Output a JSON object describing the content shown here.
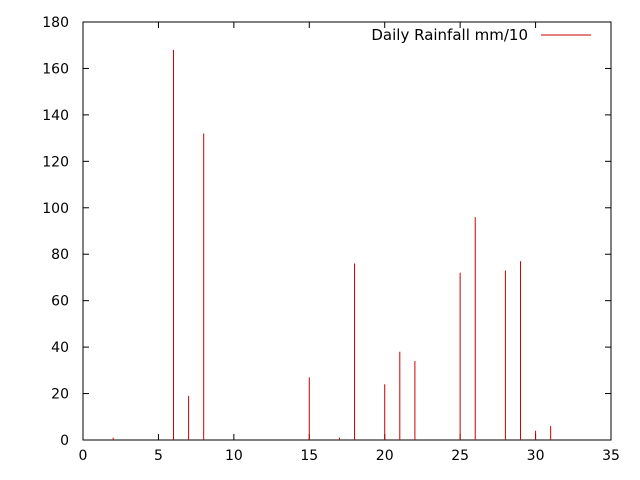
{
  "chart_data": {
    "type": "bar",
    "style": "impulses",
    "title": "",
    "xlabel": "",
    "ylabel": "",
    "xlim": [
      0,
      35
    ],
    "ylim": [
      0,
      180
    ],
    "xticks": [
      0,
      5,
      10,
      15,
      20,
      25,
      30,
      35
    ],
    "yticks": [
      0,
      20,
      40,
      60,
      80,
      100,
      120,
      140,
      160,
      180
    ],
    "grid": false,
    "legend_position": "top-right",
    "series": [
      {
        "name": "Daily Rainfall mm/10",
        "color": "#cc0000",
        "x": [
          1,
          2,
          3,
          4,
          5,
          6,
          7,
          8,
          9,
          10,
          11,
          12,
          13,
          14,
          15,
          16,
          17,
          18,
          19,
          20,
          21,
          22,
          23,
          24,
          25,
          26,
          27,
          28,
          29,
          30,
          31
        ],
        "values": [
          0,
          1,
          0,
          0,
          0,
          168,
          19,
          132,
          0,
          0,
          0,
          0,
          0,
          0,
          27,
          0,
          1,
          76,
          0,
          24,
          38,
          34,
          0,
          0,
          72,
          96,
          0,
          73,
          77,
          4,
          6
        ]
      }
    ]
  }
}
